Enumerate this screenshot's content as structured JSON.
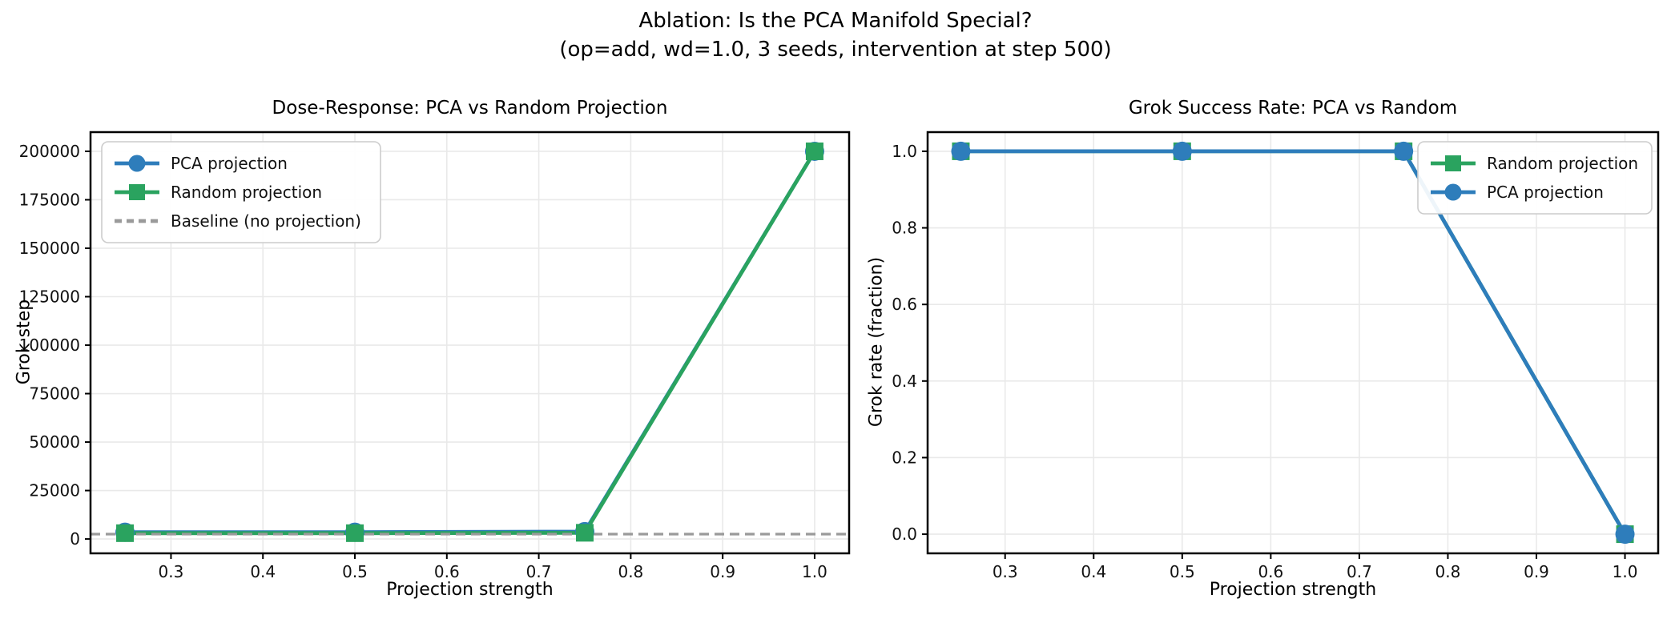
{
  "figure": {
    "suptitle_line1": "Ablation: Is the PCA Manifold Special?",
    "suptitle_line2": "(op=add, wd=1.0, 3 seeds, intervention at step 500)"
  },
  "colors": {
    "pca_blue": "#2e7dbb",
    "random_green": "#2aa35f",
    "baseline_gray": "#9a9a9a",
    "grid": "#e9e9e9",
    "spine": "#000000",
    "tick_text": "#111111",
    "legend_border": "#cccccc",
    "background": "#ffffff"
  },
  "chart_data": [
    {
      "type": "line",
      "title": "Dose-Response: PCA vs Random Projection",
      "xlabel": "Projection strength",
      "ylabel": "Grok step",
      "x": [
        0.25,
        0.5,
        0.75,
        1.0
      ],
      "xlim": [
        0.2125,
        1.0375
      ],
      "ylim": [
        -7400,
        209900
      ],
      "xtick_values": [
        0.3,
        0.4,
        0.5,
        0.6,
        0.7,
        0.8,
        0.9,
        1.0
      ],
      "xtick_labels": [
        "0.3",
        "0.4",
        "0.5",
        "0.6",
        "0.7",
        "0.8",
        "0.9",
        "1.0"
      ],
      "ytick_values": [
        0,
        25000,
        50000,
        75000,
        100000,
        125000,
        150000,
        175000,
        200000
      ],
      "ytick_labels": [
        "0",
        "25000",
        "50000",
        "75000",
        "100000",
        "125000",
        "150000",
        "175000",
        "200000"
      ],
      "grid": true,
      "series": [
        {
          "name": "PCA projection",
          "color": "#2e7dbb",
          "marker": "circle",
          "values": [
            3500,
            3500,
            3800,
            200000
          ]
        },
        {
          "name": "Random projection",
          "color": "#2aa35f",
          "marker": "square",
          "values": [
            3000,
            3000,
            3200,
            200000
          ]
        }
      ],
      "baseline": {
        "label": "Baseline (no projection)",
        "value": 2500,
        "color": "#9a9a9a",
        "style": "dashed"
      },
      "legend": {
        "position": "upper-left",
        "entries": [
          {
            "label": "PCA projection",
            "color": "#2e7dbb",
            "marker": "circle",
            "line": "solid"
          },
          {
            "label": "Random projection",
            "color": "#2aa35f",
            "marker": "square",
            "line": "solid"
          },
          {
            "label": "Baseline (no projection)",
            "color": "#9a9a9a",
            "marker": "none",
            "line": "dashed"
          }
        ]
      }
    },
    {
      "type": "line",
      "title": "Grok Success Rate: PCA vs Random",
      "xlabel": "Projection strength",
      "ylabel": "Grok rate (fraction)",
      "x": [
        0.25,
        0.5,
        0.75,
        1.0
      ],
      "xlim": [
        0.2125,
        1.0375
      ],
      "ylim": [
        -0.05,
        1.05
      ],
      "xtick_values": [
        0.3,
        0.4,
        0.5,
        0.6,
        0.7,
        0.8,
        0.9,
        1.0
      ],
      "xtick_labels": [
        "0.3",
        "0.4",
        "0.5",
        "0.6",
        "0.7",
        "0.8",
        "0.9",
        "1.0"
      ],
      "ytick_values": [
        0.0,
        0.2,
        0.4,
        0.6,
        0.8,
        1.0
      ],
      "ytick_labels": [
        "0.0",
        "0.2",
        "0.4",
        "0.6",
        "0.8",
        "1.0"
      ],
      "grid": true,
      "series": [
        {
          "name": "Random projection",
          "color": "#2aa35f",
          "marker": "square",
          "values": [
            1.0,
            1.0,
            1.0,
            0.0
          ]
        },
        {
          "name": "PCA projection",
          "color": "#2e7dbb",
          "marker": "circle",
          "values": [
            1.0,
            1.0,
            1.0,
            0.0
          ]
        }
      ],
      "baseline": null,
      "legend": {
        "position": "upper-right",
        "entries": [
          {
            "label": "Random projection",
            "color": "#2aa35f",
            "marker": "square",
            "line": "solid"
          },
          {
            "label": "PCA projection",
            "color": "#2e7dbb",
            "marker": "circle",
            "line": "solid"
          }
        ]
      }
    }
  ]
}
